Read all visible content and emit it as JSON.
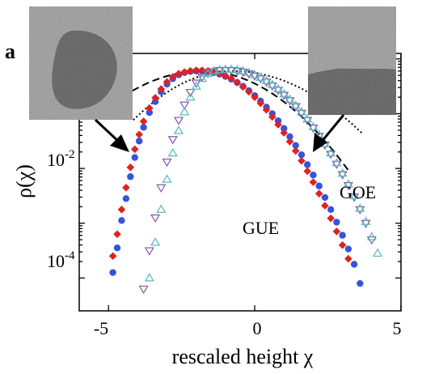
{
  "chart_data": {
    "type": "scatter",
    "panel_label": "a",
    "xlabel": "rescaled height  χ",
    "ylabel": "ρ(χ)",
    "xlim": [
      -6,
      5
    ],
    "ylim_log10": [
      -5.6,
      -0.9
    ],
    "y_scale": "log",
    "grid": false,
    "x_ticks": [
      {
        "value": -5,
        "label": "-5"
      },
      {
        "value": 0,
        "label": "0"
      },
      {
        "value": 5,
        "label": "5"
      }
    ],
    "y_ticks": [
      {
        "value": -2,
        "base": "10",
        "exp": "-2"
      },
      {
        "value": -4,
        "base": "10",
        "exp": "-4"
      }
    ],
    "annotations": [
      {
        "text": "GOE",
        "x": 3.4,
        "log10y": -2.35
      },
      {
        "text": "GUE",
        "x": 1.2,
        "log10y": -3.35
      }
    ],
    "insets": [
      {
        "name": "circular-interface-inset",
        "depicts": "circular domain"
      },
      {
        "name": "flat-interface-inset",
        "depicts": "flat interface"
      }
    ],
    "arrows": [
      {
        "from_inset": "circular-interface-inset",
        "to_x": -4.2,
        "to_log10y": -1.8
      },
      {
        "from_inset": "flat-interface-inset",
        "to_x": 2.1,
        "to_log10y": -1.8
      }
    ],
    "curves": [
      {
        "name": "GUE",
        "style": "dashed",
        "mean": -1.77,
        "lfac": 0.0622,
        "rfac": 0.0735,
        "peak_log10": -1.22,
        "x_range": [
          -5.45,
          3.2
        ]
      },
      {
        "name": "GOE",
        "style": "dotted",
        "mean": -0.76,
        "lfac": 0.078,
        "rfac": 0.058,
        "peak_log10": -1.22,
        "x_range": [
          -4.15,
          3.7
        ]
      }
    ],
    "series": [
      {
        "marker": "circle",
        "color": "#3355dd",
        "points": [
          [
            -4.85,
            -4.9
          ],
          [
            -4.7,
            -4.45
          ],
          [
            -4.55,
            -3.95
          ],
          [
            -4.4,
            -3.55
          ],
          [
            -4.25,
            -3.15
          ],
          [
            -4.1,
            -2.8
          ],
          [
            -3.95,
            -2.5
          ],
          [
            -3.8,
            -2.25
          ],
          [
            -3.6,
            -1.98
          ],
          [
            -3.4,
            -1.78
          ],
          [
            -3.2,
            -1.6
          ],
          [
            -3.0,
            -1.46
          ],
          [
            -2.8,
            -1.36
          ],
          [
            -2.6,
            -1.29
          ],
          [
            -2.4,
            -1.25
          ],
          [
            -2.2,
            -1.23
          ],
          [
            -2.0,
            -1.22
          ],
          [
            -1.8,
            -1.22
          ],
          [
            -1.6,
            -1.23
          ],
          [
            -1.4,
            -1.25
          ],
          [
            -1.2,
            -1.28
          ],
          [
            -1.0,
            -1.32
          ],
          [
            -0.8,
            -1.37
          ],
          [
            -0.6,
            -1.43
          ],
          [
            -0.4,
            -1.5
          ],
          [
            -0.2,
            -1.58
          ],
          [
            0.0,
            -1.67
          ],
          [
            0.2,
            -1.77
          ],
          [
            0.4,
            -1.88
          ],
          [
            0.6,
            -2.0
          ],
          [
            0.8,
            -2.13
          ],
          [
            1.0,
            -2.27
          ],
          [
            1.2,
            -2.42
          ],
          [
            1.4,
            -2.58
          ],
          [
            1.6,
            -2.75
          ],
          [
            1.8,
            -2.93
          ],
          [
            2.0,
            -3.12
          ],
          [
            2.2,
            -3.32
          ],
          [
            2.4,
            -3.53
          ],
          [
            2.6,
            -3.75
          ],
          [
            2.8,
            -3.98
          ],
          [
            3.0,
            -4.22
          ],
          [
            3.2,
            -4.47
          ],
          [
            3.4,
            -4.75
          ],
          [
            3.6,
            -5.1
          ]
        ]
      },
      {
        "marker": "diamond",
        "color": "#dd2222",
        "points": [
          [
            -4.85,
            -4.6
          ],
          [
            -4.7,
            -4.2
          ],
          [
            -4.55,
            -3.75
          ],
          [
            -4.4,
            -3.35
          ],
          [
            -4.25,
            -2.98
          ],
          [
            -4.1,
            -2.65
          ],
          [
            -3.95,
            -2.38
          ],
          [
            -3.8,
            -2.14
          ],
          [
            -3.6,
            -1.9
          ],
          [
            -3.4,
            -1.71
          ],
          [
            -3.2,
            -1.55
          ],
          [
            -3.0,
            -1.42
          ],
          [
            -2.8,
            -1.33
          ],
          [
            -2.6,
            -1.27
          ],
          [
            -2.4,
            -1.24
          ],
          [
            -2.2,
            -1.22
          ],
          [
            -2.0,
            -1.21
          ],
          [
            -1.8,
            -1.21
          ],
          [
            -1.6,
            -1.22
          ],
          [
            -1.4,
            -1.24
          ],
          [
            -1.2,
            -1.27
          ],
          [
            -1.0,
            -1.31
          ],
          [
            -0.8,
            -1.36
          ],
          [
            -0.6,
            -1.43
          ],
          [
            -0.4,
            -1.51
          ],
          [
            -0.2,
            -1.6
          ],
          [
            0.0,
            -1.7
          ],
          [
            0.2,
            -1.81
          ],
          [
            0.4,
            -1.93
          ],
          [
            0.6,
            -2.06
          ],
          [
            0.8,
            -2.2
          ],
          [
            1.0,
            -2.35
          ],
          [
            1.2,
            -2.51
          ],
          [
            1.4,
            -2.68
          ],
          [
            1.6,
            -2.86
          ],
          [
            1.8,
            -3.05
          ],
          [
            2.0,
            -3.25
          ],
          [
            2.2,
            -3.46
          ],
          [
            2.4,
            -3.68
          ],
          [
            2.6,
            -3.91
          ],
          [
            2.8,
            -4.15
          ],
          [
            3.0,
            -4.4
          ],
          [
            3.2,
            -4.65
          ]
        ]
      },
      {
        "marker": "triangle-down-open",
        "color": "#8855aa",
        "points": [
          [
            -3.8,
            -5.2
          ],
          [
            -3.6,
            -4.5
          ],
          [
            -3.4,
            -3.9
          ],
          [
            -3.2,
            -3.35
          ],
          [
            -3.0,
            -2.88
          ],
          [
            -2.8,
            -2.47
          ],
          [
            -2.6,
            -2.12
          ],
          [
            -2.4,
            -1.84
          ],
          [
            -2.2,
            -1.61
          ],
          [
            -2.0,
            -1.44
          ],
          [
            -1.8,
            -1.33
          ],
          [
            -1.6,
            -1.26
          ],
          [
            -1.4,
            -1.23
          ],
          [
            -1.2,
            -1.21
          ],
          [
            -1.0,
            -1.21
          ],
          [
            -0.8,
            -1.21
          ],
          [
            -0.6,
            -1.22
          ],
          [
            -0.4,
            -1.24
          ],
          [
            -0.2,
            -1.27
          ],
          [
            0.0,
            -1.31
          ],
          [
            0.2,
            -1.36
          ],
          [
            0.4,
            -1.42
          ],
          [
            0.6,
            -1.49
          ],
          [
            0.8,
            -1.57
          ],
          [
            1.0,
            -1.66
          ],
          [
            1.2,
            -1.76
          ],
          [
            1.4,
            -1.87
          ],
          [
            1.6,
            -1.99
          ],
          [
            1.8,
            -2.12
          ],
          [
            2.0,
            -2.26
          ],
          [
            2.2,
            -2.41
          ],
          [
            2.4,
            -2.57
          ],
          [
            2.6,
            -2.74
          ],
          [
            2.8,
            -2.92
          ],
          [
            3.0,
            -3.11
          ],
          [
            3.2,
            -3.31
          ],
          [
            3.4,
            -3.52
          ],
          [
            3.6,
            -3.75
          ],
          [
            3.8,
            -4.0
          ],
          [
            4.0,
            -4.3
          ]
        ]
      },
      {
        "marker": "triangle-up-open",
        "color": "#55bbbb",
        "points": [
          [
            -3.6,
            -5.0
          ],
          [
            -3.4,
            -4.35
          ],
          [
            -3.2,
            -3.75
          ],
          [
            -3.0,
            -3.2
          ],
          [
            -2.8,
            -2.72
          ],
          [
            -2.6,
            -2.31
          ],
          [
            -2.4,
            -1.97
          ],
          [
            -2.2,
            -1.7
          ],
          [
            -2.0,
            -1.5
          ],
          [
            -1.8,
            -1.36
          ],
          [
            -1.6,
            -1.27
          ],
          [
            -1.4,
            -1.22
          ],
          [
            -1.2,
            -1.2
          ],
          [
            -1.0,
            -1.19
          ],
          [
            -0.8,
            -1.19
          ],
          [
            -0.6,
            -1.2
          ],
          [
            -0.4,
            -1.22
          ],
          [
            -0.2,
            -1.25
          ],
          [
            0.0,
            -1.29
          ],
          [
            0.2,
            -1.34
          ],
          [
            0.4,
            -1.4
          ],
          [
            0.6,
            -1.47
          ],
          [
            0.8,
            -1.55
          ],
          [
            1.0,
            -1.64
          ],
          [
            1.2,
            -1.74
          ],
          [
            1.4,
            -1.85
          ],
          [
            1.6,
            -1.97
          ],
          [
            1.8,
            -2.1
          ],
          [
            2.0,
            -2.24
          ],
          [
            2.2,
            -2.39
          ],
          [
            2.4,
            -2.55
          ],
          [
            2.6,
            -2.72
          ],
          [
            2.8,
            -2.9
          ],
          [
            3.0,
            -3.09
          ],
          [
            3.2,
            -3.29
          ],
          [
            3.4,
            -3.5
          ],
          [
            3.6,
            -3.73
          ],
          [
            3.8,
            -3.97
          ],
          [
            4.0,
            -4.25
          ],
          [
            4.2,
            -4.55
          ]
        ]
      }
    ]
  }
}
